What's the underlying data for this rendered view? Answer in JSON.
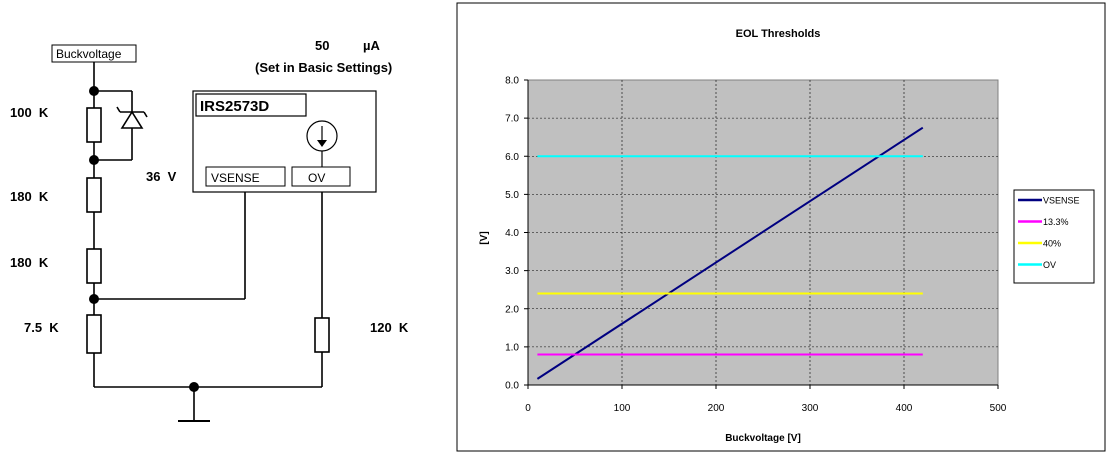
{
  "circuit": {
    "supply_label": "Buckvoltage",
    "current_value": "50",
    "current_unit": "µA",
    "current_note": "(Set in Basic Settings)",
    "ic_name": "IRS2573D",
    "pin_vsense": "VSENSE",
    "pin_ov": "OV",
    "r1": "100  K",
    "r2": "180  K",
    "r3": "180  K",
    "r4": "7.5  K",
    "r5": "120  K",
    "zener": "36  V"
  },
  "chart_data": {
    "type": "line",
    "title": "EOL Thresholds",
    "xlabel": "Buckvoltage [V]",
    "ylabel": "[V]",
    "xlim": [
      0,
      500
    ],
    "ylim": [
      0,
      8
    ],
    "xticks": [
      "0",
      "100",
      "200",
      "300",
      "400",
      "500"
    ],
    "yticks": [
      "0.0",
      "1.0",
      "2.0",
      "3.0",
      "4.0",
      "5.0",
      "6.0",
      "7.0",
      "8.0"
    ],
    "grid": true,
    "legend_position": "right",
    "plot_background": "#c0c0c0",
    "series": [
      {
        "name": "VSENSE",
        "color": "#000080",
        "x": [
          10,
          420
        ],
        "y": [
          0.16,
          6.75
        ]
      },
      {
        "name": "13.3%",
        "color": "#ff00ff",
        "x": [
          10,
          420
        ],
        "y": [
          0.8,
          0.8
        ]
      },
      {
        "name": "40%",
        "color": "#ffff00",
        "x": [
          10,
          420
        ],
        "y": [
          2.4,
          2.4
        ]
      },
      {
        "name": "OV",
        "color": "#00ffff",
        "x": [
          10,
          420
        ],
        "y": [
          6.0,
          6.0
        ]
      }
    ]
  }
}
